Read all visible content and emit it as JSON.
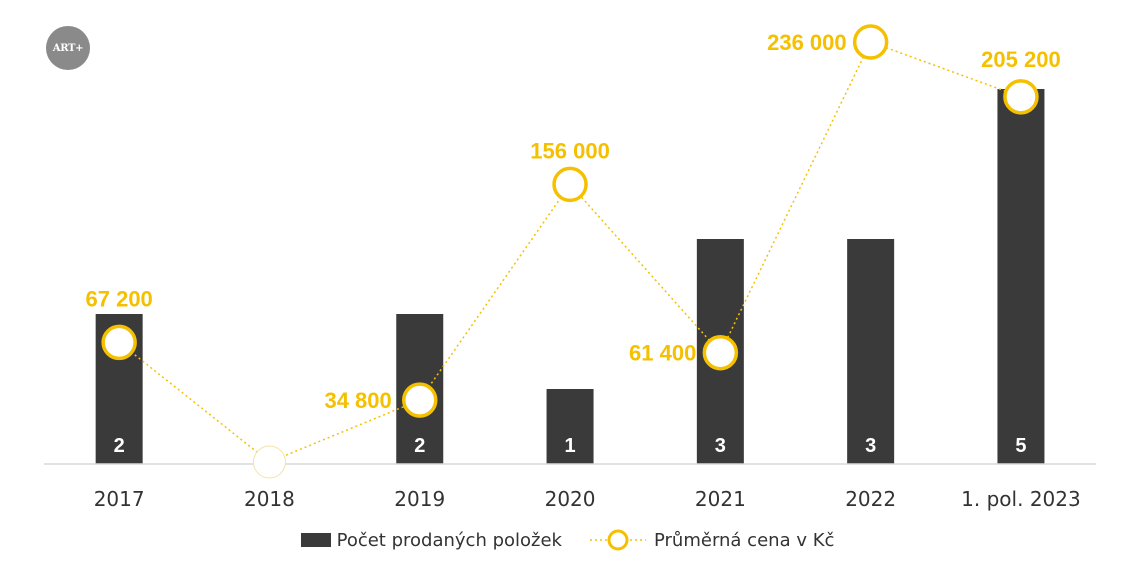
{
  "logo": {
    "text": "ART+"
  },
  "chart_data": {
    "type": "bar",
    "categories": [
      "2017",
      "2018",
      "2019",
      "2020",
      "2021",
      "2022",
      "1. pol. 2023"
    ],
    "series": [
      {
        "name": "Počet prodaných položek",
        "type": "bar",
        "values": [
          2,
          0,
          2,
          1,
          3,
          3,
          5
        ],
        "labels": [
          "2",
          "",
          "2",
          "1",
          "3",
          "3",
          "5"
        ],
        "color": "#3a3a3a",
        "label_color": "#ffffff"
      },
      {
        "name": "Průměrná cena v Kč",
        "type": "line",
        "values": [
          67200,
          0,
          34800,
          156000,
          61400,
          236000,
          205200
        ],
        "labels": [
          "67 200",
          "",
          "34 800",
          "156 000",
          "61 400",
          "236 000",
          "205 200"
        ],
        "color": "#f5c000",
        "line_style": "dotted",
        "marker": "open-circle"
      }
    ],
    "bar_axis": {
      "min": 0,
      "max": 5
    },
    "line_axis": {
      "min": 0,
      "max": 236000
    },
    "grid": false,
    "legend_position": "bottom"
  }
}
